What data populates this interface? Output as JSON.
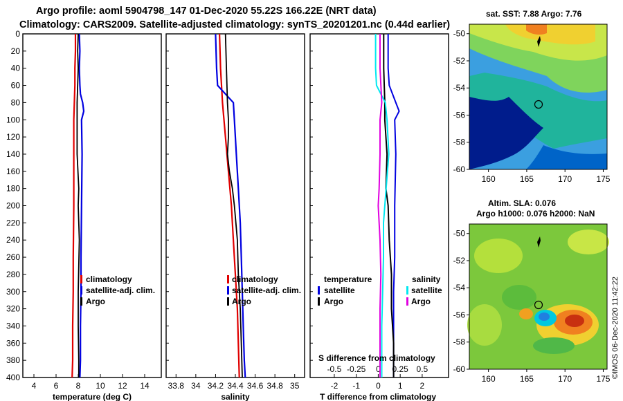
{
  "header": {
    "line1": "Argo profile: aoml 5904798_147 01-Dec-2020 55.22S 166.22E (NRT data)",
    "line2": "Climatology: CARS2009. Satellite-adjusted climatology: synTS_20201201.nc (0.44d earlier)"
  },
  "depth_axis": {
    "ticks": [
      0,
      20,
      40,
      60,
      80,
      100,
      120,
      140,
      160,
      180,
      200,
      220,
      240,
      260,
      280,
      300,
      320,
      340,
      360,
      380,
      400
    ],
    "range": [
      0,
      400
    ]
  },
  "colors": {
    "climatology": "#e00000",
    "satellite": "#0000e0",
    "argo": "#000000",
    "sal_satellite": "#00e8f0",
    "sal_argo": "#e000e0"
  },
  "chart_data": [
    {
      "type": "line",
      "panel": "temperature",
      "xlabel": "temperature (deg C)",
      "xlim": [
        3,
        15.5
      ],
      "xticks": [
        4,
        6,
        8,
        10,
        12,
        14
      ],
      "ylim": [
        0,
        400
      ],
      "legend": [
        "climatology",
        "satellite-adj. clim.",
        "Argo"
      ],
      "series": [
        {
          "name": "climatology",
          "depths": [
            0,
            20,
            40,
            60,
            80,
            100,
            140,
            200,
            260,
            300,
            340,
            380,
            400
          ],
          "values": [
            7.75,
            7.75,
            7.7,
            7.7,
            7.65,
            7.6,
            7.6,
            7.6,
            7.55,
            7.55,
            7.5,
            7.5,
            7.45
          ]
        },
        {
          "name": "satellite-adj. clim.",
          "depths": [
            0,
            20,
            40,
            60,
            70,
            80,
            90,
            100,
            140,
            200,
            260,
            300,
            340,
            380,
            400
          ],
          "values": [
            8.1,
            8.15,
            8.1,
            8.15,
            8.2,
            8.4,
            8.5,
            8.3,
            8.35,
            8.3,
            8.25,
            8.25,
            8.2,
            8.2,
            8.15
          ]
        },
        {
          "name": "Argo",
          "depths": [
            0,
            20,
            40,
            60,
            80,
            100,
            140,
            180,
            200,
            240,
            300,
            340,
            380,
            400
          ],
          "values": [
            8.0,
            7.95,
            8.0,
            7.95,
            7.9,
            7.9,
            7.9,
            8.05,
            8.0,
            8.1,
            8.0,
            8.0,
            8.05,
            8.05
          ]
        }
      ]
    },
    {
      "type": "line",
      "panel": "salinity",
      "xlabel": "salinity",
      "xlim": [
        33.7,
        35.1
      ],
      "xticks": [
        33.8,
        34,
        34.2,
        34.4,
        34.6,
        34.8,
        35
      ],
      "ylim": [
        0,
        400
      ],
      "legend": [
        "climatology",
        "satellite-adj. clim.",
        "Argo"
      ],
      "series": [
        {
          "name": "climatology",
          "depths": [
            0,
            40,
            80,
            120,
            160,
            200,
            240,
            280,
            320,
            360,
            400
          ],
          "values": [
            34.24,
            34.25,
            34.27,
            34.3,
            34.33,
            34.36,
            34.38,
            34.4,
            34.42,
            34.43,
            34.44
          ]
        },
        {
          "name": "satellite-adj. clim.",
          "depths": [
            0,
            40,
            60,
            80,
            100,
            140,
            180,
            220,
            260,
            300,
            340,
            380,
            400
          ],
          "values": [
            34.2,
            34.21,
            34.22,
            34.38,
            34.39,
            34.41,
            34.43,
            34.45,
            34.46,
            34.47,
            34.48,
            34.49,
            34.5
          ]
        },
        {
          "name": "Argo",
          "depths": [
            0,
            40,
            80,
            100,
            120,
            140,
            160,
            180,
            200,
            240,
            280,
            320,
            360,
            400
          ],
          "values": [
            34.3,
            34.31,
            34.32,
            34.33,
            34.33,
            34.32,
            34.34,
            34.37,
            34.39,
            34.42,
            34.43,
            34.45,
            34.46,
            34.47
          ]
        }
      ]
    },
    {
      "type": "line",
      "panel": "difference",
      "xlabel": "T difference from climatology",
      "xlabel2": "S difference from climatology",
      "xlim": [
        -3.1,
        3.2
      ],
      "xticks": [
        -2,
        -1,
        0,
        1,
        2
      ],
      "xlim2": [
        -0.775,
        0.8
      ],
      "xticks2": [
        -0.5,
        -0.25,
        0,
        0.25,
        0.5
      ],
      "ylim": [
        0,
        400
      ],
      "legend_temperature_title": "temperature",
      "legend_salinity_title": "salinity",
      "legend": [
        "satellite",
        "Argo",
        "satellite",
        "Argo"
      ],
      "series": [
        {
          "name": "temperature satellite",
          "depths": [
            0,
            40,
            60,
            80,
            90,
            100,
            140,
            200,
            260,
            300,
            340,
            400
          ],
          "values": [
            0.45,
            0.45,
            0.5,
            0.8,
            0.95,
            0.75,
            0.8,
            0.75,
            0.75,
            0.7,
            0.7,
            0.7
          ]
        },
        {
          "name": "temperature Argo",
          "depths": [
            0,
            40,
            80,
            100,
            140,
            180,
            200,
            240,
            280,
            320,
            360,
            400
          ],
          "values": [
            0.25,
            0.25,
            0.3,
            0.3,
            0.4,
            0.35,
            0.45,
            0.5,
            0.6,
            0.6,
            0.7,
            0.7
          ]
        },
        {
          "name": "salinity satellite",
          "depths": [
            0,
            40,
            60,
            80,
            100,
            140,
            180,
            220,
            260,
            300,
            340,
            400
          ],
          "values": [
            -0.03,
            -0.03,
            -0.02,
            0.08,
            0.1,
            0.12,
            0.09,
            0.06,
            0.06,
            0.05,
            0.04,
            0.04
          ]
        },
        {
          "name": "salinity Argo",
          "depths": [
            0,
            40,
            80,
            100,
            140,
            180,
            200,
            240,
            280,
            320,
            360,
            400
          ],
          "values": [
            0.02,
            0.02,
            0.04,
            0.02,
            0.02,
            0.01,
            0.0,
            0.02,
            0.03,
            0.02,
            0.02,
            0.02
          ]
        }
      ]
    },
    {
      "type": "heatmap",
      "panel": "sst_map",
      "title": "sat. SST: 7.88 Argo: 7.76",
      "xlim": [
        157.5,
        175.5
      ],
      "xticks": [
        160,
        165,
        170,
        175
      ],
      "ylim": [
        -60,
        -49.3
      ],
      "yticks": [
        -50,
        -52,
        -54,
        -56,
        -58,
        -60
      ],
      "argo_position": {
        "lon": 166.22,
        "lat": -55.22
      }
    },
    {
      "type": "heatmap",
      "panel": "sla_map",
      "title": "Altim. SLA: 0.076",
      "subtitle": "Argo h1000: 0.076 h2000: NaN",
      "xlim": [
        157.5,
        175.5
      ],
      "xticks": [
        160,
        165,
        170,
        175
      ],
      "ylim": [
        -60,
        -49.3
      ],
      "yticks": [
        -50,
        -52,
        -54,
        -56,
        -58,
        -60
      ],
      "argo_position": {
        "lon": 166.22,
        "lat": -55.22
      }
    }
  ],
  "footer": {
    "credit": "©IMOS 06-Dec-2020 11:42:22"
  }
}
